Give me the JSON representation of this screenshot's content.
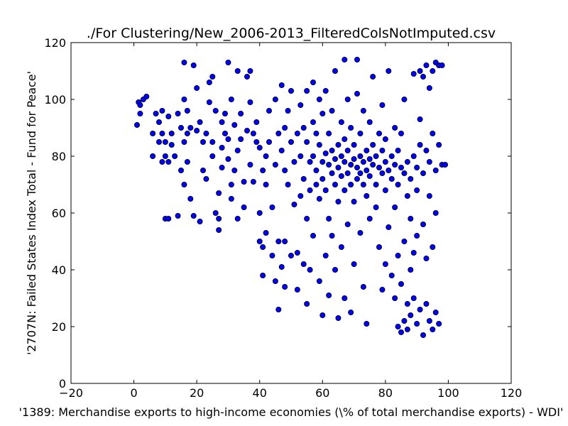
{
  "chart_data": {
    "type": "scatter",
    "title": "./For Clustering/New_2006-2013_FilteredColsNotImputed.csv",
    "xlabel": "'1389: Merchandise exports to high-income economies  (\\% of total merchandise exports) - WDI'",
    "ylabel": "'2707N: Failed States Index Total - Fund for Peace'",
    "xlim": [
      -20,
      120
    ],
    "ylim": [
      0,
      120
    ],
    "xticks": [
      "−20",
      "0",
      "20",
      "40",
      "60",
      "80",
      "100",
      "120"
    ],
    "yticks": [
      "0",
      "20",
      "40",
      "60",
      "80",
      "100",
      "120"
    ],
    "grid": false,
    "legend": "none",
    "marker_color": "#0000ff",
    "points": [
      [
        1,
        91
      ],
      [
        1.5,
        99
      ],
      [
        2,
        95
      ],
      [
        2,
        98
      ],
      [
        3,
        100
      ],
      [
        4,
        101
      ],
      [
        6,
        80
      ],
      [
        6,
        88
      ],
      [
        7,
        95
      ],
      [
        8,
        85
      ],
      [
        8,
        92
      ],
      [
        9,
        78
      ],
      [
        9,
        88
      ],
      [
        9,
        96
      ],
      [
        10,
        58
      ],
      [
        10,
        80
      ],
      [
        10,
        85
      ],
      [
        11,
        58
      ],
      [
        11,
        78
      ],
      [
        11,
        94
      ],
      [
        12,
        84
      ],
      [
        12,
        88
      ],
      [
        13,
        80
      ],
      [
        14,
        59
      ],
      [
        14,
        95
      ],
      [
        15,
        75
      ],
      [
        15,
        90
      ],
      [
        16,
        113
      ],
      [
        16,
        100
      ],
      [
        16,
        85
      ],
      [
        16,
        70
      ],
      [
        17,
        96
      ],
      [
        17,
        88
      ],
      [
        17,
        78
      ],
      [
        18,
        65
      ],
      [
        18,
        90
      ],
      [
        19,
        59
      ],
      [
        19,
        112
      ],
      [
        20,
        89
      ],
      [
        20,
        104
      ],
      [
        21,
        92
      ],
      [
        21,
        57
      ],
      [
        22,
        85
      ],
      [
        22,
        75
      ],
      [
        23,
        88
      ],
      [
        23,
        72
      ],
      [
        24,
        99
      ],
      [
        24,
        106
      ],
      [
        25,
        85
      ],
      [
        25,
        108
      ],
      [
        25,
        80
      ],
      [
        26,
        96
      ],
      [
        26,
        60
      ],
      [
        27,
        54
      ],
      [
        27,
        67
      ],
      [
        27,
        58
      ],
      [
        28,
        83
      ],
      [
        28,
        76
      ],
      [
        28,
        92
      ],
      [
        29,
        95
      ],
      [
        29,
        88
      ],
      [
        30,
        113
      ],
      [
        30,
        79
      ],
      [
        30,
        86
      ],
      [
        31,
        100
      ],
      [
        31,
        65
      ],
      [
        31,
        70
      ],
      [
        32,
        91
      ],
      [
        32,
        75
      ],
      [
        33,
        110
      ],
      [
        33,
        82
      ],
      [
        33,
        58
      ],
      [
        34,
        86
      ],
      [
        34,
        95
      ],
      [
        35,
        71
      ],
      [
        35,
        62
      ],
      [
        36,
        108
      ],
      [
        36,
        89
      ],
      [
        37,
        77
      ],
      [
        37,
        99
      ],
      [
        37,
        110
      ],
      [
        38,
        88
      ],
      [
        38,
        71
      ],
      [
        39,
        85
      ],
      [
        39,
        92
      ],
      [
        40,
        60
      ],
      [
        40,
        83
      ],
      [
        40,
        50
      ],
      [
        41,
        75
      ],
      [
        41,
        48
      ],
      [
        41,
        38
      ],
      [
        42,
        80
      ],
      [
        42,
        70
      ],
      [
        42,
        53
      ],
      [
        43,
        96
      ],
      [
        43,
        85
      ],
      [
        44,
        45
      ],
      [
        44,
        62
      ],
      [
        45,
        100
      ],
      [
        45,
        77
      ],
      [
        45,
        36
      ],
      [
        46,
        88
      ],
      [
        46,
        50
      ],
      [
        46,
        26
      ],
      [
        47,
        105
      ],
      [
        47,
        82
      ],
      [
        47,
        41
      ],
      [
        48,
        90
      ],
      [
        48,
        75
      ],
      [
        48,
        50
      ],
      [
        48,
        34
      ],
      [
        49,
        70
      ],
      [
        49,
        96
      ],
      [
        50,
        85
      ],
      [
        50,
        103
      ],
      [
        50,
        45
      ],
      [
        51,
        78
      ],
      [
        51,
        63
      ],
      [
        52,
        88
      ],
      [
        52,
        46
      ],
      [
        52,
        33
      ],
      [
        53,
        80
      ],
      [
        53,
        66
      ],
      [
        53,
        98
      ],
      [
        54,
        72
      ],
      [
        54,
        90
      ],
      [
        54,
        42
      ],
      [
        55,
        85
      ],
      [
        55,
        103
      ],
      [
        55,
        58
      ],
      [
        55,
        28
      ],
      [
        56,
        78
      ],
      [
        56,
        68
      ],
      [
        56,
        40
      ],
      [
        57,
        92
      ],
      [
        57,
        106
      ],
      [
        57,
        80
      ],
      [
        57,
        52
      ],
      [
        58,
        75
      ],
      [
        58,
        88
      ],
      [
        58,
        70
      ],
      [
        59,
        100
      ],
      [
        59,
        84
      ],
      [
        59,
        65
      ],
      [
        59,
        36
      ],
      [
        60,
        78
      ],
      [
        60,
        95
      ],
      [
        60,
        72
      ],
      [
        60,
        24
      ],
      [
        61,
        81
      ],
      [
        61,
        103
      ],
      [
        61,
        68
      ],
      [
        61,
        45
      ],
      [
        62,
        77
      ],
      [
        62,
        88
      ],
      [
        62,
        58
      ],
      [
        62,
        31
      ],
      [
        63,
        74
      ],
      [
        63,
        82
      ],
      [
        63,
        96
      ],
      [
        63,
        52
      ],
      [
        64,
        79
      ],
      [
        64,
        70
      ],
      [
        64,
        110
      ],
      [
        64,
        40
      ],
      [
        65,
        76
      ],
      [
        65,
        84
      ],
      [
        65,
        64
      ],
      [
        65,
        23
      ],
      [
        66,
        80
      ],
      [
        66,
        73
      ],
      [
        66,
        92
      ],
      [
        66,
        48
      ],
      [
        67,
        78
      ],
      [
        67,
        86
      ],
      [
        67,
        68
      ],
      [
        67,
        114
      ],
      [
        67,
        30
      ],
      [
        68,
        74
      ],
      [
        68,
        82
      ],
      [
        68,
        100
      ],
      [
        68,
        56
      ],
      [
        69,
        77
      ],
      [
        69,
        70
      ],
      [
        69,
        90
      ],
      [
        69,
        25
      ],
      [
        70,
        79
      ],
      [
        70,
        84
      ],
      [
        70,
        64
      ],
      [
        70,
        42
      ],
      [
        71,
        76
      ],
      [
        71,
        72
      ],
      [
        71,
        102
      ],
      [
        71,
        114
      ],
      [
        72,
        80
      ],
      [
        72,
        74
      ],
      [
        72,
        88
      ],
      [
        72,
        53
      ],
      [
        73,
        78
      ],
      [
        73,
        70
      ],
      [
        73,
        96
      ],
      [
        73,
        34
      ],
      [
        74,
        75
      ],
      [
        74,
        82
      ],
      [
        74,
        66
      ],
      [
        74,
        21
      ],
      [
        75,
        79
      ],
      [
        75,
        73
      ],
      [
        75,
        92
      ],
      [
        75,
        58
      ],
      [
        76,
        77
      ],
      [
        76,
        84
      ],
      [
        76,
        108
      ],
      [
        77,
        80
      ],
      [
        77,
        70
      ],
      [
        77,
        62
      ],
      [
        78,
        76
      ],
      [
        78,
        88
      ],
      [
        78,
        48
      ],
      [
        79,
        74
      ],
      [
        79,
        82
      ],
      [
        79,
        98
      ],
      [
        79,
        33
      ],
      [
        80,
        78
      ],
      [
        80,
        68
      ],
      [
        80,
        86
      ],
      [
        80,
        42
      ],
      [
        81,
        75
      ],
      [
        81,
        110
      ],
      [
        81,
        55
      ],
      [
        82,
        80
      ],
      [
        82,
        72
      ],
      [
        82,
        38
      ],
      [
        83,
        77
      ],
      [
        83,
        90
      ],
      [
        83,
        62
      ],
      [
        83,
        30
      ],
      [
        84,
        82
      ],
      [
        84,
        70
      ],
      [
        84,
        45
      ],
      [
        84,
        20
      ],
      [
        85,
        76
      ],
      [
        85,
        88
      ],
      [
        85,
        35
      ],
      [
        85,
        18
      ],
      [
        86,
        74
      ],
      [
        86,
        100
      ],
      [
        86,
        50
      ],
      [
        86,
        22
      ],
      [
        87,
        78
      ],
      [
        87,
        66
      ],
      [
        87,
        28
      ],
      [
        87,
        19
      ],
      [
        88,
        72
      ],
      [
        88,
        58
      ],
      [
        88,
        40
      ],
      [
        88,
        24
      ],
      [
        89,
        80
      ],
      [
        89,
        109
      ],
      [
        89,
        46
      ],
      [
        89,
        30
      ],
      [
        90,
        76
      ],
      [
        90,
        68
      ],
      [
        90,
        52
      ],
      [
        90,
        21
      ],
      [
        91,
        110
      ],
      [
        91,
        93
      ],
      [
        91,
        84
      ],
      [
        91,
        26
      ],
      [
        92,
        108
      ],
      [
        92,
        74
      ],
      [
        92,
        56
      ],
      [
        92,
        17
      ],
      [
        93,
        112
      ],
      [
        93,
        82
      ],
      [
        93,
        44
      ],
      [
        93,
        28
      ],
      [
        94,
        104
      ],
      [
        94,
        78
      ],
      [
        94,
        66
      ],
      [
        94,
        22
      ],
      [
        95,
        110
      ],
      [
        95,
        88
      ],
      [
        95,
        48
      ],
      [
        95,
        19
      ],
      [
        96,
        113
      ],
      [
        96,
        75
      ],
      [
        96,
        60
      ],
      [
        96,
        25
      ],
      [
        97,
        112
      ],
      [
        97,
        84
      ],
      [
        97,
        21
      ],
      [
        98,
        112
      ],
      [
        98,
        77
      ],
      [
        99,
        77
      ]
    ]
  }
}
